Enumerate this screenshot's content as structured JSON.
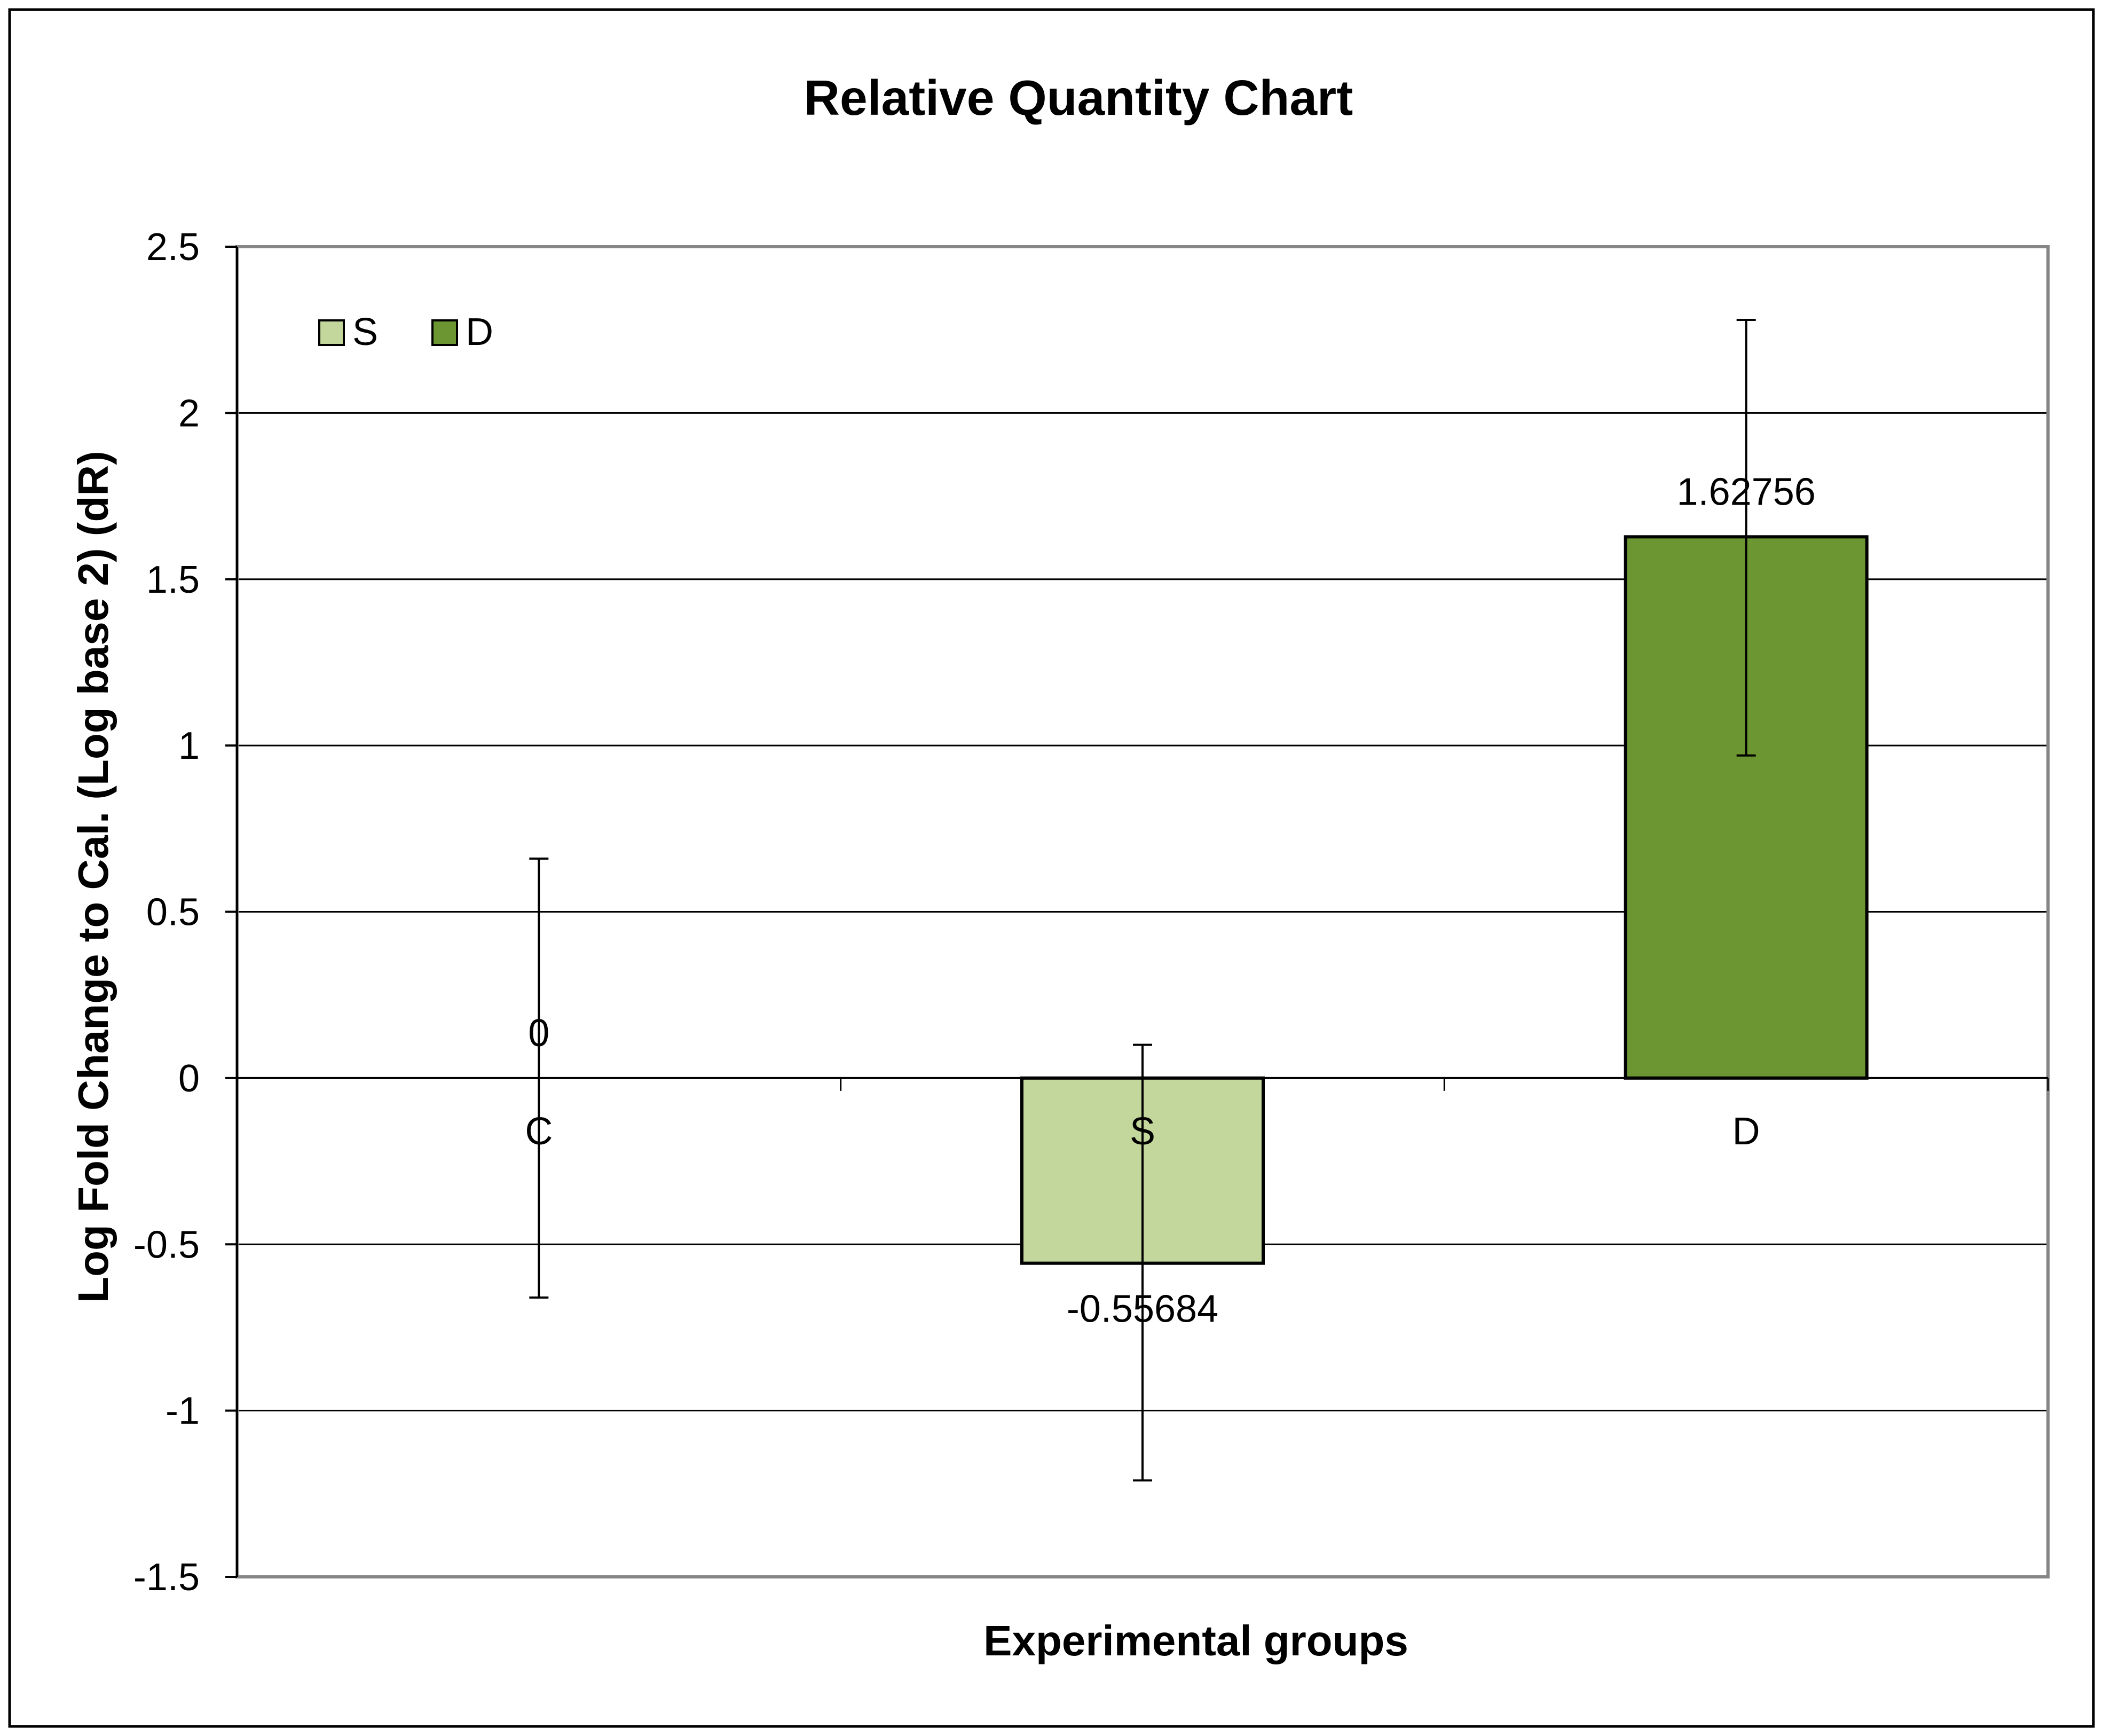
{
  "chart_data": {
    "type": "bar",
    "title": "Relative Quantity Chart",
    "xlabel": "Experimental groups",
    "ylabel": "Log Fold Change to Cal. (Log base 2) (dR)",
    "ylim": [
      -1.5,
      2.5
    ],
    "yticks": [
      2.5,
      2,
      1.5,
      1,
      0.5,
      0,
      -0.5,
      -1,
      -1.5
    ],
    "ytick_labels": [
      "2.5",
      "2",
      "1.5",
      "1",
      "0.5",
      "0",
      "-0.5",
      "-1",
      "-1.5"
    ],
    "grid": true,
    "categories": [
      "C",
      "S",
      "D"
    ],
    "values": [
      0,
      -0.55684,
      1.62756
    ],
    "value_labels": [
      "0",
      "-0.55684",
      "1.62756"
    ],
    "error_upper": [
      0.66,
      0.1,
      2.28
    ],
    "error_lower": [
      -0.66,
      -1.21,
      0.97
    ],
    "bar_colors": [
      "#c3d69b",
      "#c3d69b",
      "#6b9632"
    ],
    "legend": {
      "position": "top-left",
      "entries": [
        {
          "label": "S",
          "color": "#c3d69b"
        },
        {
          "label": "D",
          "color": "#6b9632"
        }
      ]
    }
  },
  "colors": {
    "gridline": "#000000",
    "plot_border": "#868686",
    "outer_border": "#000000",
    "bar_outline": "#000000",
    "errorbar": "#000000"
  }
}
